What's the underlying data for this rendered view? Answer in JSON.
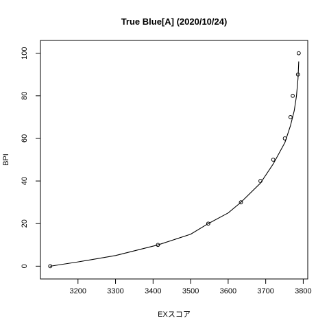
{
  "chart_data": {
    "type": "scatter",
    "title": "True Blue[A] (2020/10/24)",
    "xlabel": "EXスコア",
    "ylabel": "BPI",
    "xlim": [
      3100,
      3812
    ],
    "ylim": [
      -6,
      106
    ],
    "x_ticks": [
      3200,
      3300,
      3400,
      3500,
      3600,
      3700,
      3800
    ],
    "x_tick_labels": [
      "3200",
      "3300",
      "3400",
      "3500",
      "3600",
      "3700",
      "3800"
    ],
    "y_ticks": [
      0,
      20,
      40,
      60,
      80,
      100
    ],
    "y_tick_labels": [
      "0",
      "20",
      "40",
      "60",
      "80",
      "100"
    ],
    "grid": false,
    "legend": "none",
    "series": [
      {
        "x": [
          3126,
          3413,
          3547,
          3634,
          3686,
          3720,
          3751,
          3766,
          3772,
          3786,
          3788
        ],
        "y": [
          0,
          10,
          20,
          30,
          40,
          50,
          60,
          70,
          80,
          90,
          100
        ]
      }
    ],
    "fit_curve": {
      "x": [
        3126,
        3200,
        3300,
        3413,
        3500,
        3547,
        3600,
        3634,
        3686,
        3720,
        3751,
        3766,
        3776,
        3782,
        3786,
        3788
      ],
      "y": [
        0,
        2,
        5,
        10,
        15,
        20,
        25,
        30,
        39,
        48,
        58,
        66,
        73,
        80,
        88,
        96
      ]
    },
    "colors": {
      "points": "#000000",
      "curve": "#000000",
      "axes": "#000000",
      "background": "#ffffff"
    }
  }
}
